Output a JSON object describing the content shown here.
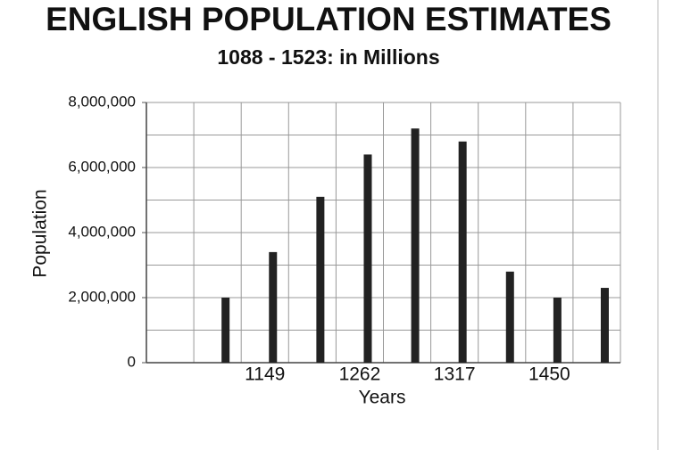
{
  "chart_data": {
    "type": "bar",
    "title": "ENGLISH POPULATION ESTIMATES",
    "subtitle": "1088 - 1523: in Millions",
    "x_label": "Years",
    "y_label": "Population",
    "categories": [
      null,
      null,
      "1149",
      null,
      "1262",
      null,
      "1317",
      null,
      "1450",
      null
    ],
    "values": [
      null,
      2000000,
      3400000,
      5100000,
      6400000,
      7200000,
      6800000,
      2800000,
      2000000,
      2300000
    ],
    "color": "#222222",
    "ylim": [
      0,
      8000000
    ],
    "yticks": [
      0,
      {
        "value": 2000000,
        "label": "2,000,000"
      },
      {
        "value": 4000000,
        "label": "4,000,000"
      },
      {
        "value": 6000000,
        "label": "6,000,000"
      },
      {
        "value": 8000000,
        "label": "8,000,000"
      }
    ],
    "yminor": [
      1000000,
      3000000,
      5000000,
      7000000
    ],
    "grid": true
  }
}
